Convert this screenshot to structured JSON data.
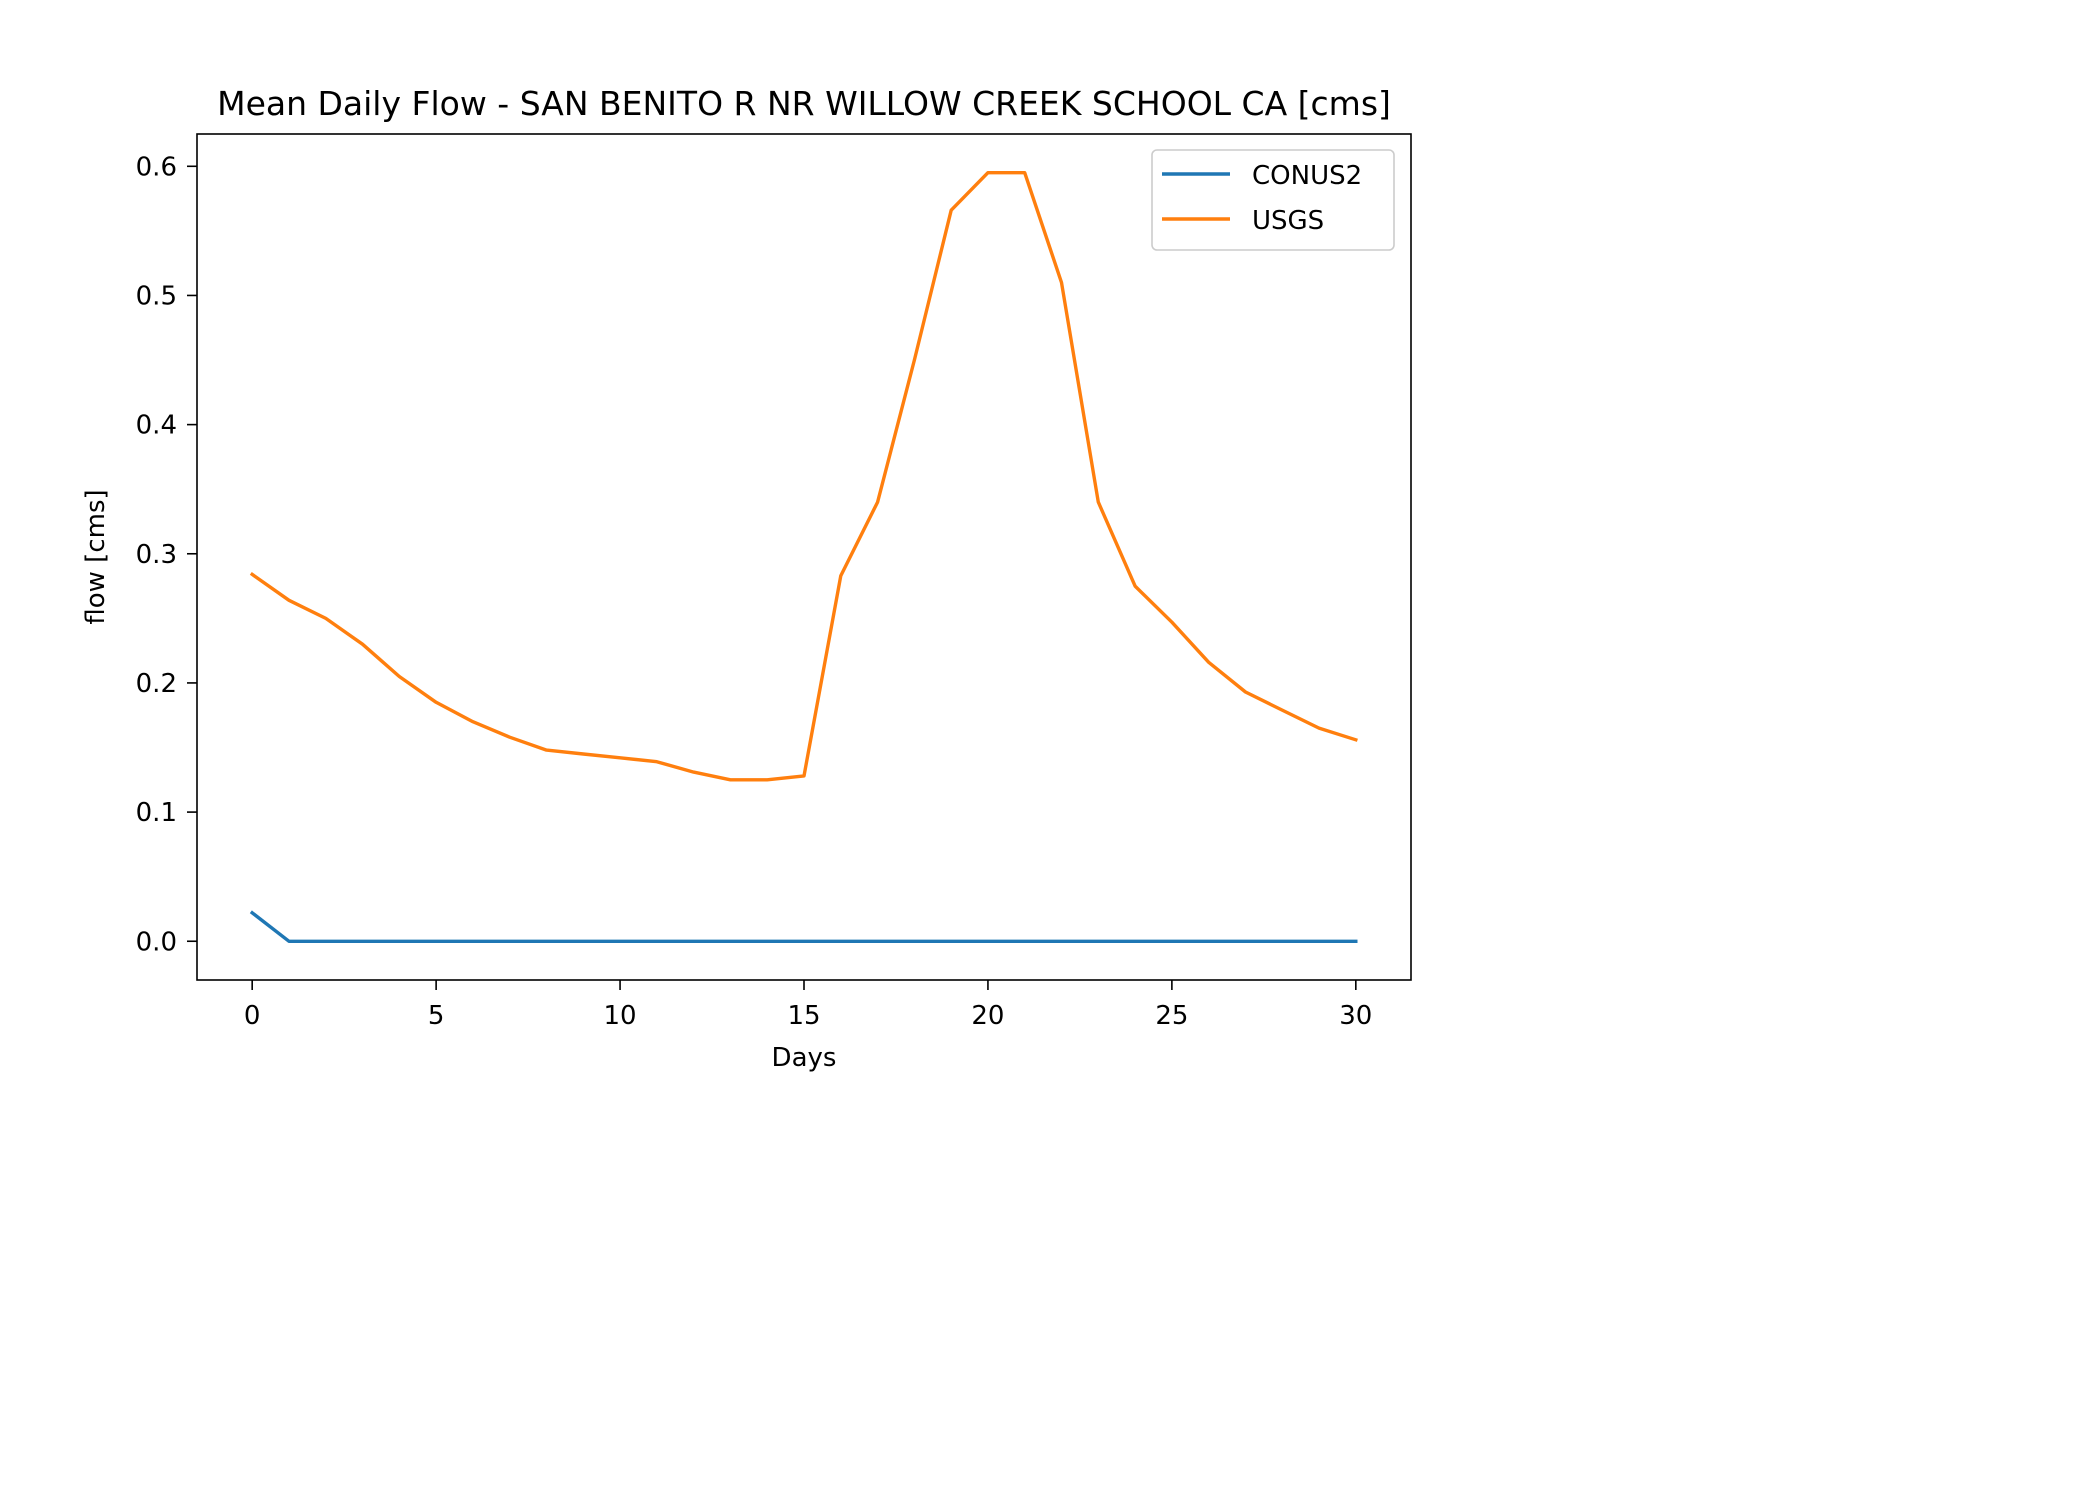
{
  "chart_data": {
    "type": "line",
    "title": "Mean Daily Flow - SAN BENITO R NR WILLOW CREEK SCHOOL CA [cms]",
    "xlabel": "Days",
    "ylabel": "flow [cms]",
    "xlim": [
      -1.5,
      31.5
    ],
    "ylim": [
      -0.03,
      0.625
    ],
    "xticks": [
      0,
      5,
      10,
      15,
      20,
      25,
      30
    ],
    "xtick_labels": [
      "0",
      "5",
      "10",
      "15",
      "20",
      "25",
      "30"
    ],
    "yticks": [
      0.0,
      0.1,
      0.2,
      0.3,
      0.4,
      0.5,
      0.6
    ],
    "ytick_labels": [
      "0.0",
      "0.1",
      "0.2",
      "0.3",
      "0.4",
      "0.5",
      "0.6"
    ],
    "grid": false,
    "legend_position": "upper right",
    "x": [
      0,
      1,
      2,
      3,
      4,
      5,
      6,
      7,
      8,
      9,
      10,
      11,
      12,
      13,
      14,
      15,
      16,
      17,
      18,
      19,
      20,
      21,
      22,
      23,
      24,
      25,
      26,
      27,
      28,
      29,
      30
    ],
    "series": [
      {
        "name": "CONUS2",
        "color": "#1f77b4",
        "values": [
          0.022,
          0.0,
          0.0,
          0.0,
          0.0,
          0.0,
          0.0,
          0.0,
          0.0,
          0.0,
          0.0,
          0.0,
          0.0,
          0.0,
          0.0,
          0.0,
          0.0,
          0.0,
          0.0,
          0.0,
          0.0,
          0.0,
          0.0,
          0.0,
          0.0,
          0.0,
          0.0,
          0.0,
          0.0,
          0.0,
          0.0
        ]
      },
      {
        "name": "USGS",
        "color": "#ff7f0e",
        "values": [
          0.284,
          0.264,
          0.25,
          0.23,
          0.205,
          0.185,
          0.17,
          0.158,
          0.148,
          0.145,
          0.142,
          0.139,
          0.131,
          0.125,
          0.125,
          0.128,
          0.283,
          0.34,
          0.45,
          0.566,
          0.595,
          0.595,
          0.51,
          0.34,
          0.275,
          0.247,
          0.216,
          0.193,
          0.179,
          0.165,
          0.156
        ]
      }
    ]
  }
}
